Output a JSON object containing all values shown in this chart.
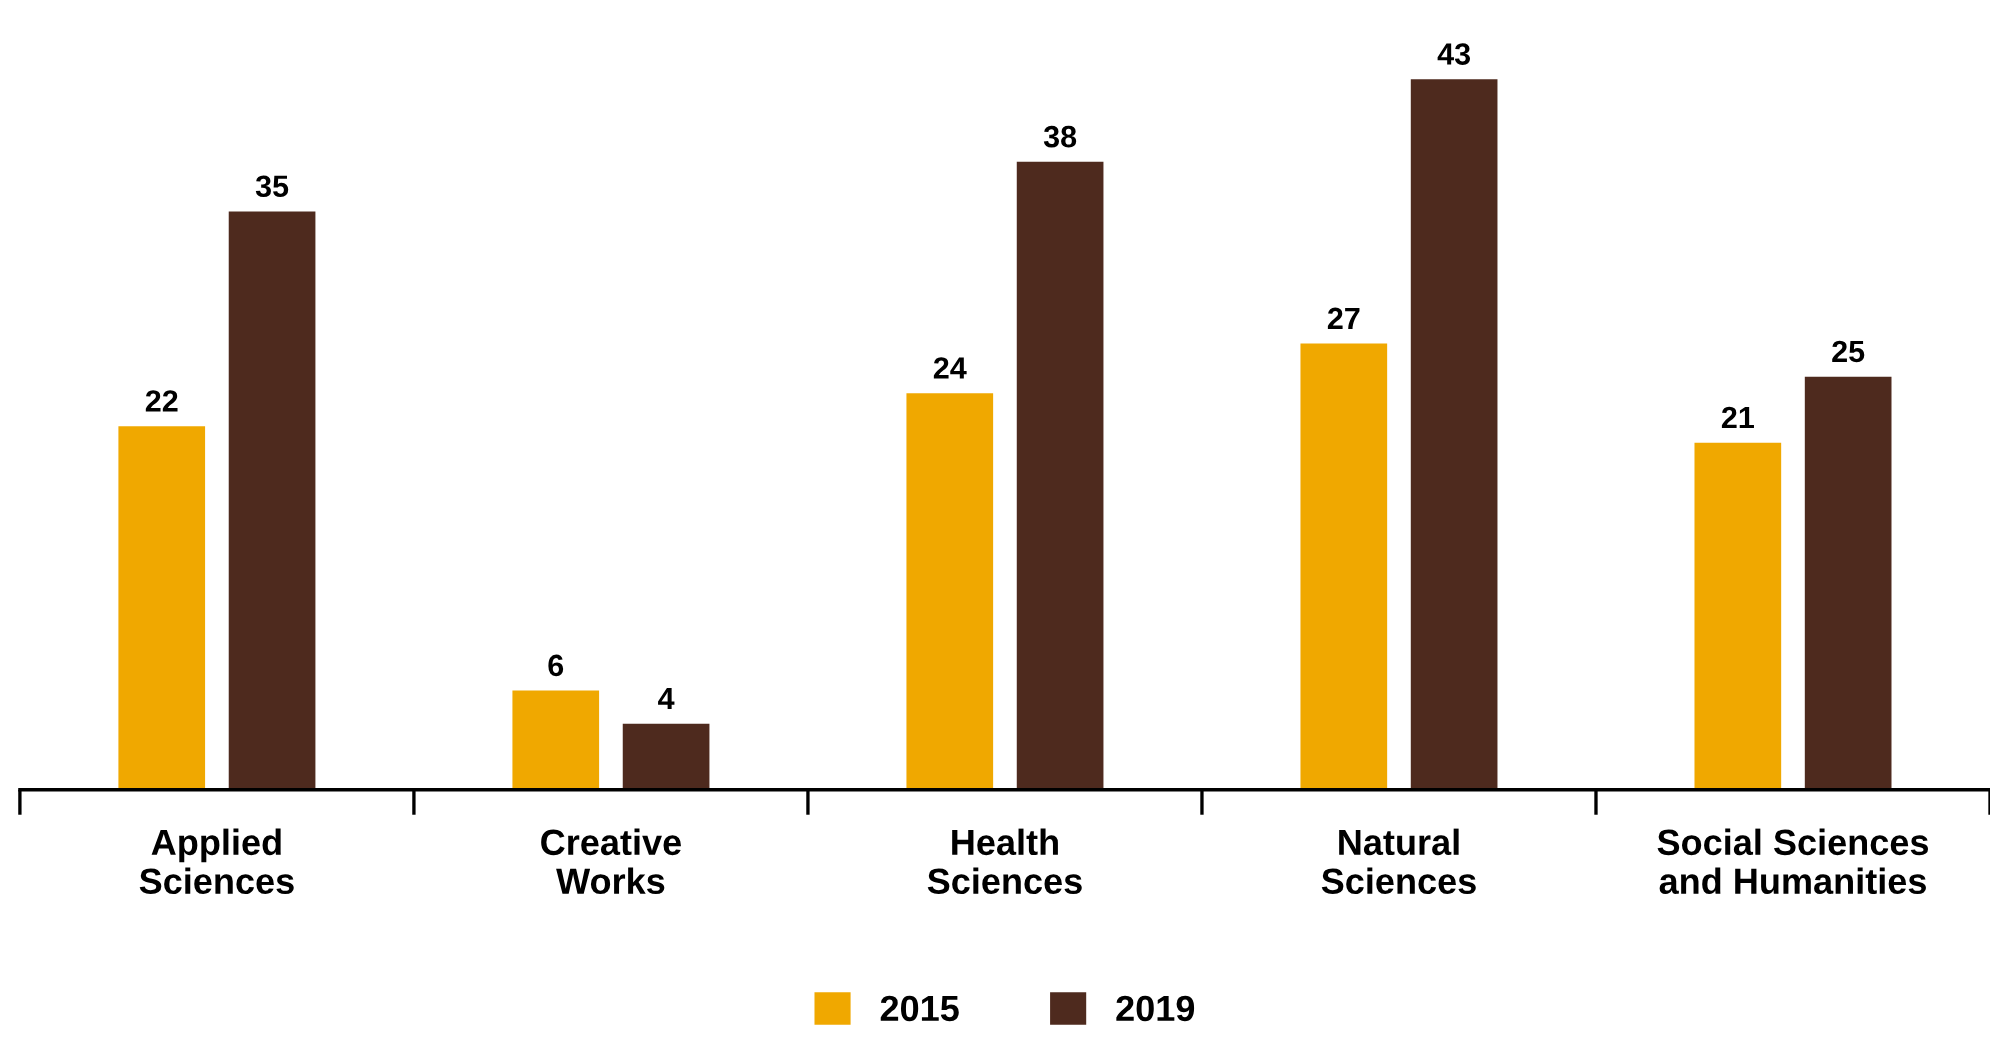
{
  "chart_data": {
    "type": "bar",
    "categories": [
      "Applied\nSciences",
      "Creative\nWorks",
      "Health\nSciences",
      "Natural\nSciences",
      "Social Sciences\nand Humanities"
    ],
    "series": [
      {
        "name": "2015",
        "color": "#f0a800",
        "values": [
          22,
          6,
          24,
          27,
          21
        ]
      },
      {
        "name": "2019",
        "color": "#4e2a1e",
        "values": [
          35,
          4,
          38,
          43,
          25
        ]
      }
    ],
    "data_labels": true,
    "legend": "bottom",
    "grid": false
  }
}
